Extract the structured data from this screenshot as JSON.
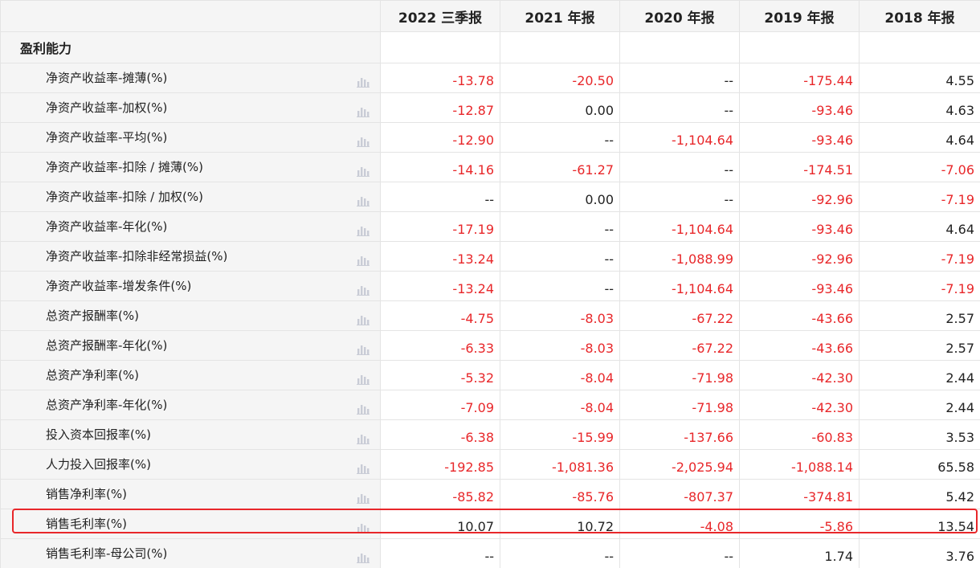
{
  "columns": [
    "2022 三季报",
    "2021 年报",
    "2020 年报",
    "2019 年报",
    "2018 年报"
  ],
  "section_title": "盈利能力",
  "chart_icon": "bar-chart-icon",
  "colors": {
    "negative": "#e8272a",
    "positive": "#222222",
    "highlight": "#e8272a"
  },
  "rows": [
    {
      "label": "净资产收益率-摊薄(%)",
      "values": [
        "-13.78",
        "-20.50",
        "--",
        "-175.44",
        "4.55"
      ]
    },
    {
      "label": "净资产收益率-加权(%)",
      "values": [
        "-12.87",
        "0.00",
        "--",
        "-93.46",
        "4.63"
      ]
    },
    {
      "label": "净资产收益率-平均(%)",
      "values": [
        "-12.90",
        "--",
        "-1,104.64",
        "-93.46",
        "4.64"
      ]
    },
    {
      "label": "净资产收益率-扣除 / 摊薄(%)",
      "values": [
        "-14.16",
        "-61.27",
        "--",
        "-174.51",
        "-7.06"
      ]
    },
    {
      "label": "净资产收益率-扣除 / 加权(%)",
      "values": [
        "--",
        "0.00",
        "--",
        "-92.96",
        "-7.19"
      ]
    },
    {
      "label": "净资产收益率-年化(%)",
      "values": [
        "-17.19",
        "--",
        "-1,104.64",
        "-93.46",
        "4.64"
      ]
    },
    {
      "label": "净资产收益率-扣除非经常损益(%)",
      "values": [
        "-13.24",
        "--",
        "-1,088.99",
        "-92.96",
        "-7.19"
      ]
    },
    {
      "label": "净资产收益率-增发条件(%)",
      "values": [
        "-13.24",
        "--",
        "-1,104.64",
        "-93.46",
        "-7.19"
      ]
    },
    {
      "label": "总资产报酬率(%)",
      "values": [
        "-4.75",
        "-8.03",
        "-67.22",
        "-43.66",
        "2.57"
      ]
    },
    {
      "label": "总资产报酬率-年化(%)",
      "values": [
        "-6.33",
        "-8.03",
        "-67.22",
        "-43.66",
        "2.57"
      ]
    },
    {
      "label": "总资产净利率(%)",
      "values": [
        "-5.32",
        "-8.04",
        "-71.98",
        "-42.30",
        "2.44"
      ]
    },
    {
      "label": "总资产净利率-年化(%)",
      "values": [
        "-7.09",
        "-8.04",
        "-71.98",
        "-42.30",
        "2.44"
      ]
    },
    {
      "label": "投入资本回报率(%)",
      "values": [
        "-6.38",
        "-15.99",
        "-137.66",
        "-60.83",
        "3.53"
      ]
    },
    {
      "label": "人力投入回报率(%)",
      "values": [
        "-192.85",
        "-1,081.36",
        "-2,025.94",
        "-1,088.14",
        "65.58"
      ]
    },
    {
      "label": "销售净利率(%)",
      "values": [
        "-85.82",
        "-85.76",
        "-807.37",
        "-374.81",
        "5.42"
      ]
    },
    {
      "label": "销售毛利率(%)",
      "values": [
        "10.07",
        "10.72",
        "-4.08",
        "-5.86",
        "13.54"
      ],
      "highlighted": true
    },
    {
      "label": "销售毛利率-母公司(%)",
      "values": [
        "--",
        "--",
        "--",
        "1.74",
        "3.76"
      ]
    }
  ]
}
